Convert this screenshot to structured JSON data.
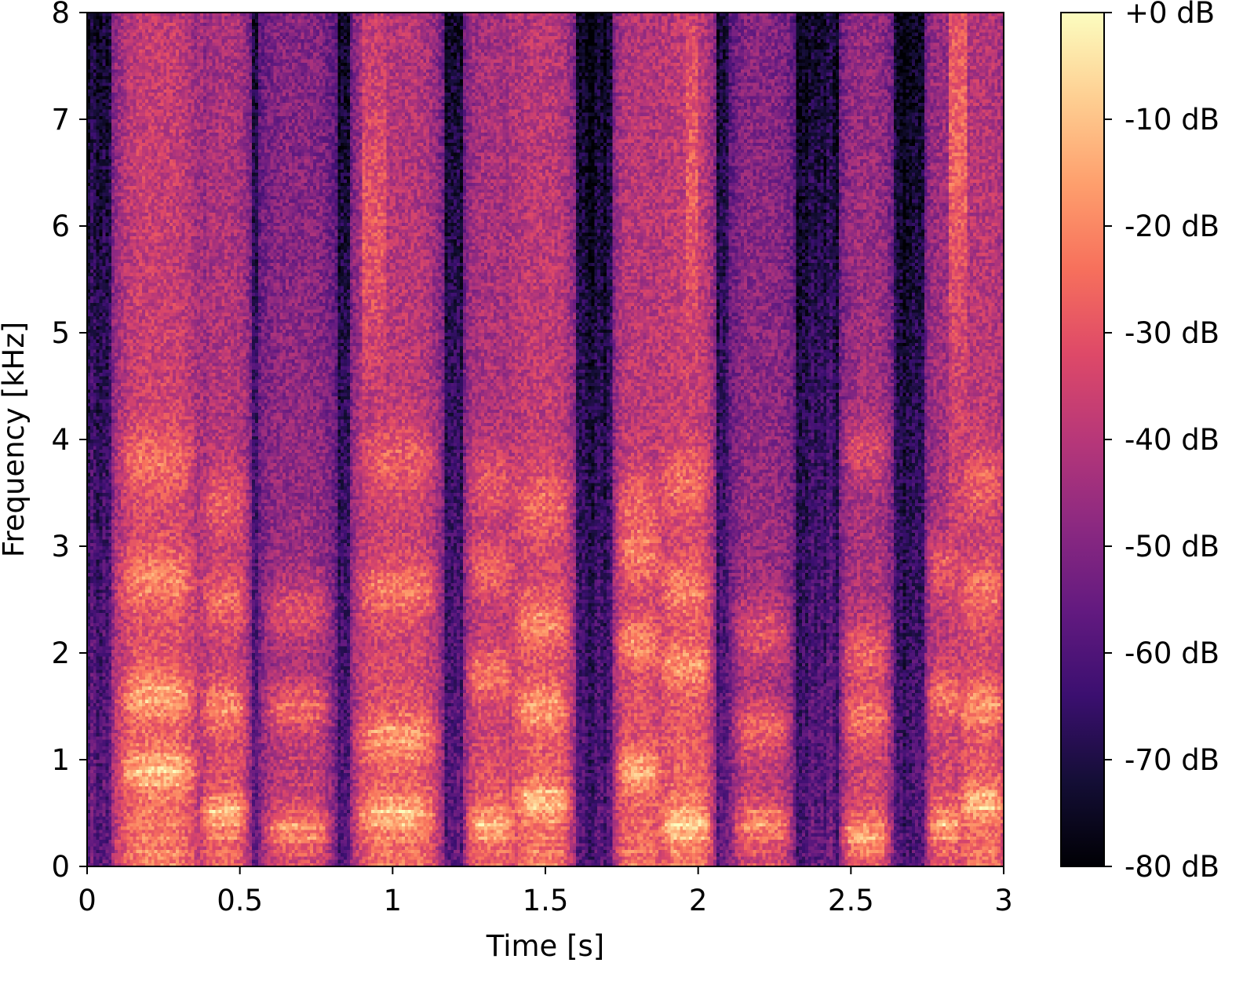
{
  "chart_data": {
    "type": "heatmap",
    "subtype": "spectrogram",
    "title": "",
    "xlabel": "Time [s]",
    "ylabel": "Frequency [kHz]",
    "xlim": [
      0,
      3
    ],
    "ylim": [
      0,
      8
    ],
    "x_ticks": [
      0,
      0.5,
      1,
      1.5,
      2,
      2.5,
      3
    ],
    "x_tick_labels": [
      "0",
      "0.5",
      "1",
      "1.5",
      "2",
      "2.5",
      "3"
    ],
    "y_ticks": [
      0,
      1,
      2,
      3,
      4,
      5,
      6,
      7,
      8
    ],
    "y_tick_labels": [
      "0",
      "1",
      "2",
      "3",
      "4",
      "5",
      "6",
      "7",
      "8"
    ],
    "colormap": "magma",
    "colorbar": {
      "range": [
        -80,
        0
      ],
      "ticks": [
        0,
        -10,
        -20,
        -30,
        -40,
        -50,
        -60,
        -70,
        -80
      ],
      "tick_labels": [
        "+0 dB",
        "-10 dB",
        "-20 dB",
        "-30 dB",
        "-40 dB",
        "-50 dB",
        "-60 dB",
        "-70 dB",
        "-80 dB"
      ]
    },
    "voiced_segments": [
      {
        "start": 0.1,
        "end": 0.36,
        "f0_hz": 120,
        "formants_khz": [
          0.9,
          1.6,
          2.7,
          3.8
        ],
        "level_db": -8
      },
      {
        "start": 0.38,
        "end": 0.52,
        "f0_hz": 125,
        "formants_khz": [
          0.5,
          1.5,
          2.5,
          3.4
        ],
        "level_db": -13
      },
      {
        "start": 0.58,
        "end": 0.8,
        "f0_hz": 118,
        "formants_khz": [
          0.35,
          1.5,
          2.4
        ],
        "level_db": -20
      },
      {
        "start": 0.88,
        "end": 1.15,
        "f0_hz": 120,
        "formants_khz": [
          0.5,
          1.2,
          2.6,
          3.8
        ],
        "level_db": -11
      },
      {
        "start": 1.25,
        "end": 1.4,
        "f0_hz": 125,
        "formants_khz": [
          0.4,
          1.8,
          2.8,
          3.6
        ],
        "level_db": -14
      },
      {
        "start": 1.4,
        "end": 1.58,
        "f0_hz": 130,
        "formants_khz": [
          0.6,
          1.5,
          2.3,
          3.4
        ],
        "level_db": -10
      },
      {
        "start": 1.74,
        "end": 1.88,
        "f0_hz": 135,
        "formants_khz": [
          0.9,
          2.1,
          2.9,
          3.4
        ],
        "level_db": -11
      },
      {
        "start": 1.88,
        "end": 2.04,
        "f0_hz": 125,
        "formants_khz": [
          0.4,
          1.9,
          2.6,
          3.6
        ],
        "level_db": -9
      },
      {
        "start": 2.12,
        "end": 2.3,
        "f0_hz": 120,
        "formants_khz": [
          0.4,
          1.3,
          2.2
        ],
        "level_db": -20
      },
      {
        "start": 2.48,
        "end": 2.62,
        "f0_hz": 118,
        "formants_khz": [
          0.3,
          1.4,
          2.0,
          3.9
        ],
        "level_db": -17
      },
      {
        "start": 2.76,
        "end": 2.86,
        "f0_hz": 125,
        "formants_khz": [
          0.4,
          1.6,
          2.8
        ],
        "level_db": -16
      },
      {
        "start": 2.86,
        "end": 3.0,
        "f0_hz": 128,
        "formants_khz": [
          0.6,
          1.5,
          2.6,
          3.6
        ],
        "level_db": -11
      }
    ],
    "fricative_segments": [
      {
        "start": 0.9,
        "end": 0.98,
        "center_khz": 6.0,
        "level_db": -32
      },
      {
        "start": 1.96,
        "end": 2.0,
        "center_khz": 6.5,
        "level_db": -30
      },
      {
        "start": 2.82,
        "end": 2.88,
        "center_khz": 6.8,
        "level_db": -28
      },
      {
        "start": 0.16,
        "end": 0.22,
        "center_khz": 6.5,
        "level_db": -38
      }
    ]
  }
}
